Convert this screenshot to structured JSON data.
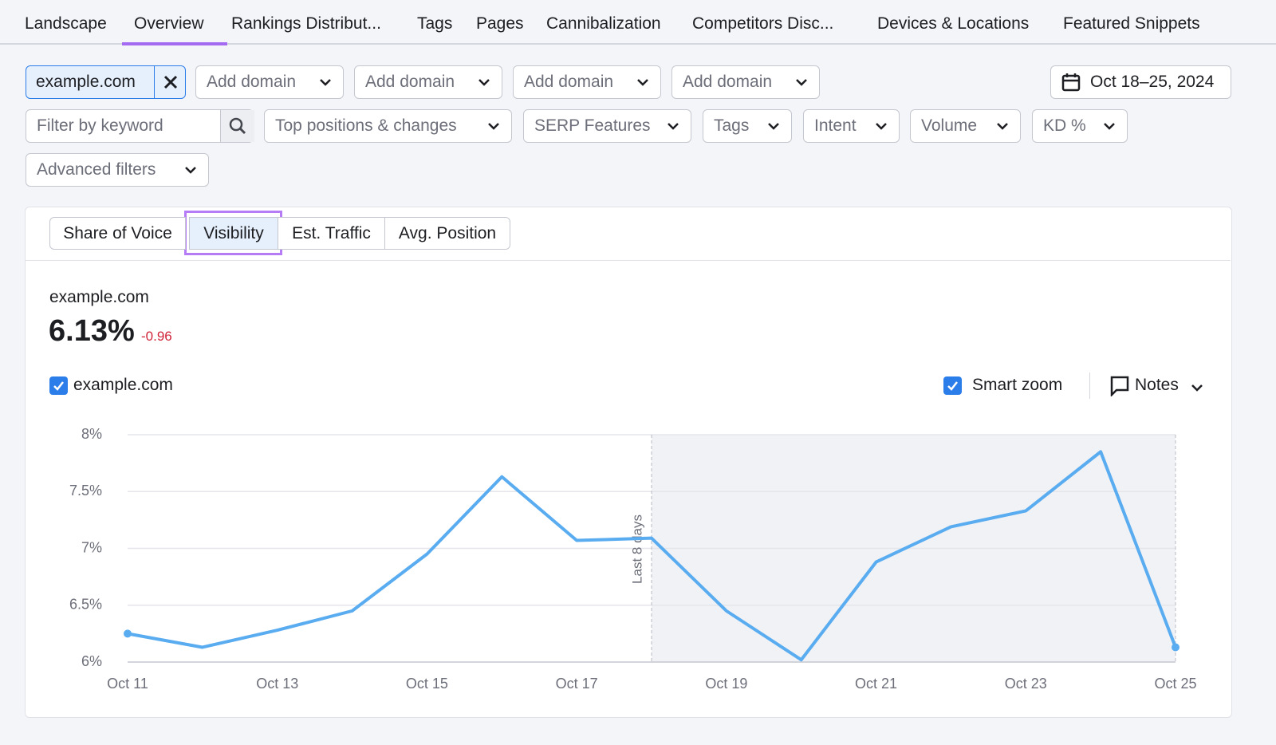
{
  "nav": {
    "tabs": [
      "Landscape",
      "Overview",
      "Rankings Distribut...",
      "Tags",
      "Pages",
      "Cannibalization",
      "Competitors Disc...",
      "Devices & Locations",
      "Featured Snippets"
    ],
    "active": 1
  },
  "domains": {
    "selected": "example.com",
    "add": [
      "Add domain",
      "Add domain",
      "Add domain",
      "Add domain"
    ]
  },
  "date_range": "Oct 18–25, 2024",
  "filters": {
    "keyword_placeholder": "Filter by keyword",
    "dropdowns": [
      "Top positions & changes",
      "SERP Features",
      "Tags",
      "Intent",
      "Volume",
      "KD %"
    ],
    "advanced": "Advanced filters"
  },
  "metric_tabs": {
    "tabs": [
      "Share of Voice",
      "Visibility",
      "Est. Traffic",
      "Avg. Position"
    ],
    "active": 1
  },
  "summary": {
    "domain": "example.com",
    "value": "6.13%",
    "change": "-0.96"
  },
  "controls": {
    "smart_zoom": "Smart zoom",
    "notes": "Notes"
  },
  "chart_data": {
    "type": "line",
    "categories": [
      "Oct 11",
      null,
      "Oct 13",
      null,
      "Oct 15",
      null,
      "Oct 17",
      null,
      "Oct 19",
      null,
      "Oct 21",
      null,
      "Oct 23",
      null,
      "Oct 25"
    ],
    "series": [
      {
        "name": "example.com",
        "color": "#5aacf0",
        "values": [
          6.25,
          6.13,
          6.28,
          6.45,
          6.95,
          7.63,
          7.07,
          7.09,
          6.45,
          6.02,
          6.88,
          7.19,
          7.33,
          7.85,
          6.13
        ]
      }
    ],
    "ylim": [
      6,
      8
    ],
    "yticks": [
      {
        "value": 6,
        "label": "6%"
      },
      {
        "value": 6.5,
        "label": "6.5%"
      },
      {
        "value": 7,
        "label": "7%"
      },
      {
        "value": 7.5,
        "label": "7.5%"
      },
      {
        "value": 8,
        "label": "8%"
      }
    ],
    "grid": true,
    "annotation": "Last 8 days"
  }
}
